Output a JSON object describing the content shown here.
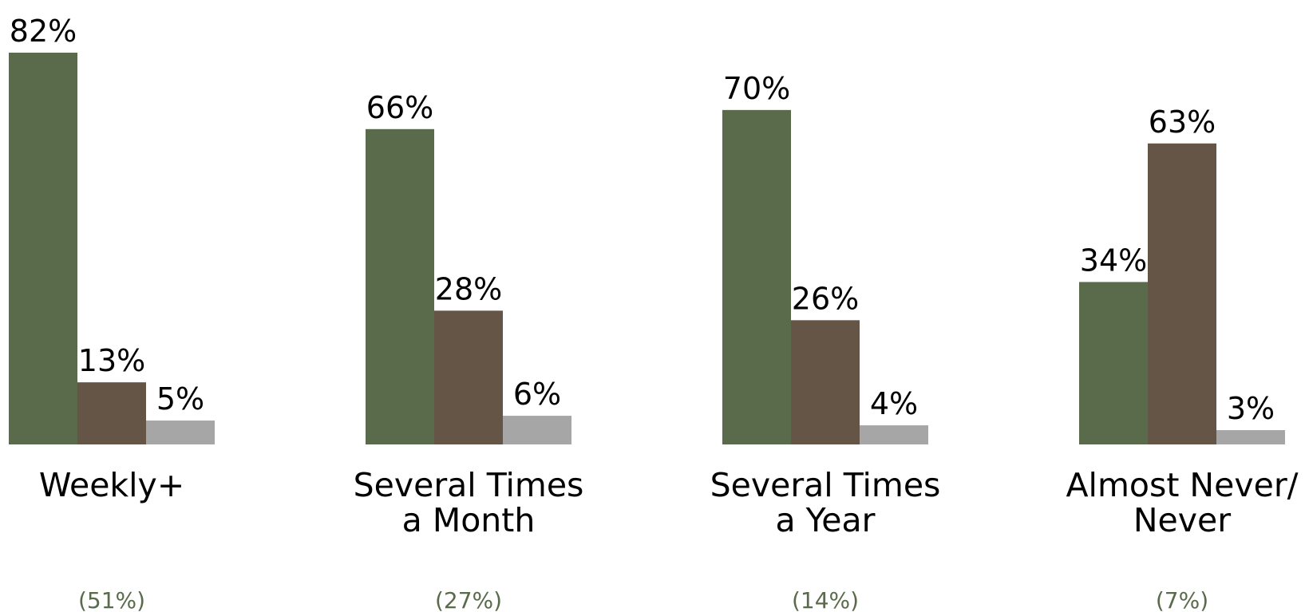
{
  "chart_data": {
    "type": "bar",
    "title": "",
    "xlabel": "",
    "ylabel": "",
    "ylim": [
      0,
      82
    ],
    "grid": false,
    "legend": "none",
    "categories": [
      [
        "Weekly+"
      ],
      [
        "Several Times",
        "a Month"
      ],
      [
        "Several Times",
        "a Year"
      ],
      [
        "Almost Never/",
        "Never"
      ]
    ],
    "category_shares": [
      "(51%)",
      "(27%)",
      "(14%)",
      "(7%)"
    ],
    "series": [
      {
        "values": [
          82,
          66,
          70,
          34
        ],
        "labels": [
          "82%",
          "66%",
          "70%",
          "34%"
        ],
        "color": "#5a6b4b"
      },
      {
        "values": [
          13,
          28,
          26,
          63
        ],
        "labels": [
          "13%",
          "28%",
          "26%",
          "63%"
        ],
        "color": "#645546"
      },
      {
        "values": [
          5,
          6,
          4,
          3
        ],
        "labels": [
          "5%",
          "6%",
          "4%",
          "3%"
        ],
        "color": "#a6a6a6"
      }
    ],
    "share_color": "#5a6b4b"
  }
}
